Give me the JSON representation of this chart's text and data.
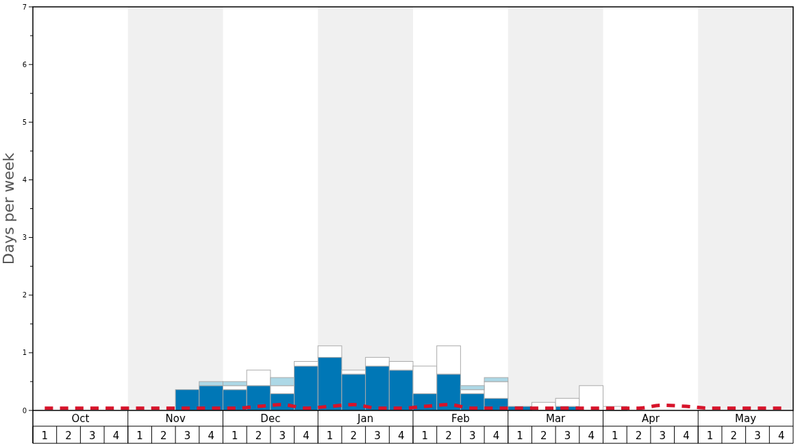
{
  "chart_data": {
    "type": "bar",
    "stacked": true,
    "ylabel": "Days per week",
    "categories": [
      "1",
      "2",
      "3",
      "4",
      "1",
      "2",
      "3",
      "4",
      "1",
      "2",
      "3",
      "4",
      "1",
      "2",
      "3",
      "4",
      "1",
      "2",
      "3",
      "4",
      "1",
      "2",
      "3",
      "4",
      "1",
      "2",
      "3",
      "4",
      "1",
      "2",
      "3",
      "4"
    ],
    "annotations": [
      "Oct",
      "Nov",
      "Dec",
      "Jan",
      "Feb",
      "Mar",
      "Apr",
      "May"
    ],
    "series": [
      {
        "color": "#0077b6",
        "values": [
          0,
          0,
          0,
          0,
          0,
          0,
          0.36,
          0.43,
          0.36,
          0.43,
          0.29,
          0.77,
          0.92,
          0.63,
          0.77,
          0.7,
          0.29,
          0.63,
          0.29,
          0.21,
          0.07,
          0,
          0.07,
          0,
          0,
          0,
          0,
          0,
          0,
          0,
          0,
          0
        ]
      },
      {
        "color": "#ffffff",
        "values": [
          0,
          0,
          0,
          0,
          0,
          0,
          0,
          0,
          0.07,
          0.27,
          0.14,
          0.08,
          0.2,
          0.07,
          0.15,
          0.15,
          0.48,
          0.49,
          0.07,
          0.29,
          0,
          0.14,
          0.14,
          0.43,
          0.07,
          0,
          0,
          0,
          0,
          0,
          0,
          0
        ]
      },
      {
        "color": "#add8e6",
        "values": [
          0,
          0,
          0,
          0,
          0,
          0,
          0,
          0.07,
          0.07,
          0,
          0.14,
          0,
          0,
          0,
          0,
          0,
          0,
          0,
          0.07,
          0.07,
          0,
          0,
          0,
          0,
          0,
          0,
          0,
          0,
          0,
          0,
          0,
          0
        ]
      },
      {
        "type": "line",
        "color": "#d7132a",
        "line_style": "dashed",
        "values": [
          0.04,
          0.04,
          0.04,
          0.04,
          0.04,
          0.04,
          0.04,
          0.04,
          0.04,
          0.07,
          0.1,
          0.04,
          0.07,
          0.1,
          0.04,
          0.04,
          0.07,
          0.1,
          0.04,
          0.04,
          0.04,
          0.04,
          0.04,
          0.04,
          0.04,
          0.04,
          0.09,
          0.07,
          0.04,
          0.04,
          0.04,
          0.04
        ]
      }
    ],
    "ylim": [
      0,
      7
    ],
    "yticks": [
      0,
      {
        "value": 0.5,
        "label": null
      },
      1,
      {
        "value": 1.5,
        "label": null
      },
      2,
      {
        "value": 2.5,
        "label": null
      },
      3,
      {
        "value": 3.5,
        "label": null
      },
      4,
      {
        "value": 4.5,
        "label": null
      },
      5,
      {
        "value": 5.5,
        "label": null
      },
      6,
      {
        "value": 6.5,
        "label": null
      },
      7
    ]
  }
}
